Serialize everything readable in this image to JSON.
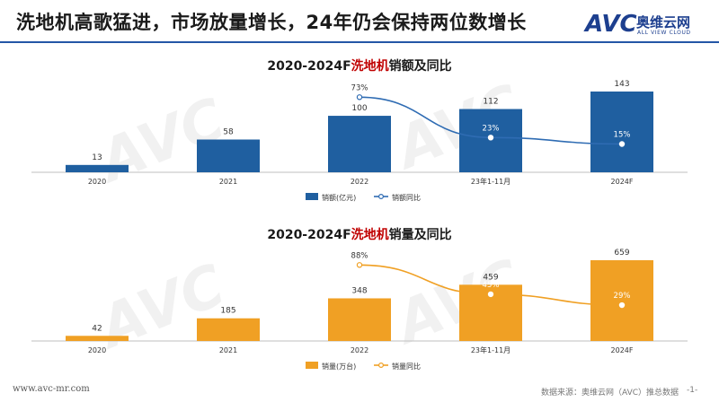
{
  "header": {
    "title": "洗地机高歌猛进，市场放量增长，24年仍会保持两位数增长",
    "logo": {
      "mark": "AVC",
      "name_cn": "奥维云网",
      "name_en": "ALL VIEW CLOUD"
    }
  },
  "watermark": {
    "mark": "AVC",
    "name_cn": "奥维云网",
    "name_en": "ALL VIEW CLOUD"
  },
  "colors": {
    "accent_blue": "#2456a6",
    "bar_blue": "#1f5fa0",
    "bar_orange": "#f0a024",
    "highlight_red": "#c00000"
  },
  "chart_data": [
    {
      "type": "bar",
      "title_pre": "2020-2024F",
      "title_hl": "洗地机",
      "title_post": "销额及同比",
      "categories": [
        "2020",
        "2021",
        "2022",
        "23年1-11月",
        "2024F"
      ],
      "series": [
        {
          "name": "销额(亿元)",
          "type": "bar",
          "values": [
            13,
            58,
            100,
            112,
            143
          ],
          "labels": [
            "13",
            "58",
            "100",
            "112",
            "143"
          ]
        },
        {
          "name": "销额同比",
          "type": "line",
          "values": [
            null,
            null,
            73,
            23,
            15
          ],
          "labels": [
            "",
            "",
            "73%",
            "23%",
            "15%"
          ]
        }
      ]
    },
    {
      "type": "bar",
      "title_pre": "2020-2024F",
      "title_hl": "洗地机",
      "title_post": "销量及同比",
      "categories": [
        "2020",
        "2021",
        "2022",
        "23年1-11月",
        "2024F"
      ],
      "series": [
        {
          "name": "销量(万台)",
          "type": "bar",
          "values": [
            42,
            185,
            348,
            459,
            659
          ],
          "labels": [
            "42",
            "185",
            "348",
            "459",
            "659"
          ]
        },
        {
          "name": "销量同比",
          "type": "line",
          "values": [
            null,
            null,
            88,
            45,
            29
          ],
          "labels": [
            "",
            "",
            "88%",
            "45%",
            "29%"
          ]
        }
      ]
    }
  ],
  "footer": {
    "url": "www.avc-mr.com",
    "source": "数据来源：奥维云网（AVC）推总数据",
    "page": "-1-"
  }
}
